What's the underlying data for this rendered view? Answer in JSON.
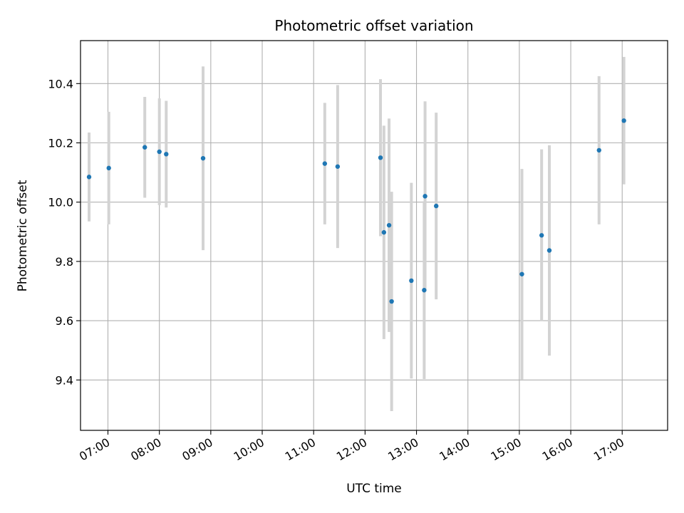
{
  "chart_data": {
    "type": "scatter",
    "title": "Photometric offset variation",
    "xlabel": "UTC time",
    "ylabel": "Photometric offset",
    "x_scale": "time",
    "xlim": [
      "06:28",
      "17:53"
    ],
    "ylim": [
      9.23,
      10.545
    ],
    "grid": true,
    "x_ticks": [
      "07:00",
      "08:00",
      "09:00",
      "10:00",
      "11:00",
      "12:00",
      "13:00",
      "14:00",
      "15:00",
      "16:00",
      "17:00"
    ],
    "y_ticks": [
      "9.4",
      "9.6",
      "9.8",
      "10.0",
      "10.2",
      "10.4"
    ],
    "colors": {
      "points": "#1f77b4",
      "error_bars": "#d3d3d3",
      "grid": "#b0b0b0"
    },
    "points": [
      {
        "x": "06:38",
        "y": 10.085,
        "yerr": 0.15
      },
      {
        "x": "07:01",
        "y": 10.115,
        "yerr": 0.19
      },
      {
        "x": "07:43",
        "y": 10.185,
        "yerr": 0.17
      },
      {
        "x": "08:00",
        "y": 10.17,
        "yerr": 0.18
      },
      {
        "x": "08:08",
        "y": 10.162,
        "yerr": 0.18
      },
      {
        "x": "08:51",
        "y": 10.148,
        "yerr": 0.31
      },
      {
        "x": "11:13",
        "y": 10.13,
        "yerr": 0.205
      },
      {
        "x": "11:28",
        "y": 10.12,
        "yerr": 0.275
      },
      {
        "x": "12:18",
        "y": 10.15,
        "yerr": 0.265
      },
      {
        "x": "12:22",
        "y": 9.898,
        "yerr": 0.36
      },
      {
        "x": "12:28",
        "y": 9.922,
        "yerr": 0.36
      },
      {
        "x": "12:31",
        "y": 9.665,
        "yerr": 0.37
      },
      {
        "x": "12:54",
        "y": 9.735,
        "yerr": 0.33
      },
      {
        "x": "13:09",
        "y": 9.703,
        "yerr": 0.3
      },
      {
        "x": "13:10",
        "y": 10.02,
        "yerr": 0.32
      },
      {
        "x": "13:23",
        "y": 9.987,
        "yerr": 0.315
      },
      {
        "x": "15:03",
        "y": 9.757,
        "yerr": 0.355
      },
      {
        "x": "15:26",
        "y": 9.888,
        "yerr": 0.29
      },
      {
        "x": "15:35",
        "y": 9.837,
        "yerr": 0.355
      },
      {
        "x": "16:33",
        "y": 10.175,
        "yerr": 0.25
      },
      {
        "x": "17:02",
        "y": 10.275,
        "yerr": 0.215
      }
    ]
  }
}
